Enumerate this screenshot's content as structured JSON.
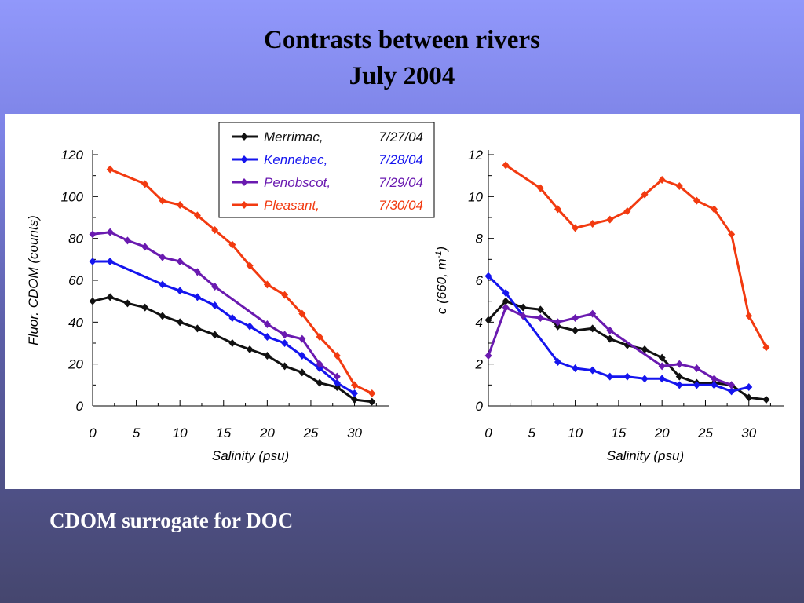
{
  "slide": {
    "title_line1": "Contrasts between rivers",
    "title_line2": "July 2004",
    "caption": "CDOM surrogate for DOC"
  },
  "colors": {
    "Merrimac": "#111111",
    "Kennebec": "#1515ee",
    "Penobscot": "#6a1ab0",
    "Pleasant": "#f23a10"
  },
  "legend": {
    "entries": [
      {
        "name": "Merrimac,",
        "date": "7/27/04",
        "color": "#111111"
      },
      {
        "name": "Kennebec,",
        "date": "7/28/04",
        "color": "#1515ee"
      },
      {
        "name": "Penobscot,",
        "date": "7/29/04",
        "color": "#6a1ab0"
      },
      {
        "name": "Pleasant,",
        "date": "7/30/04",
        "color": "#f23a10"
      }
    ]
  },
  "chart_data": [
    {
      "type": "line",
      "ylabel": "Fluor. CDOM (counts)",
      "xlabel": "Salinity (psu)",
      "xlim": [
        0,
        34
      ],
      "ylim": [
        0,
        120
      ],
      "xticks": [
        0,
        5,
        10,
        15,
        20,
        25,
        30
      ],
      "yticks": [
        0,
        20,
        40,
        60,
        80,
        100,
        120
      ],
      "grid": false,
      "legend_placement": "top-right",
      "series": [
        {
          "name": "Merrimac",
          "color": "#111111",
          "x": [
            0,
            2,
            4,
            6,
            8,
            10,
            12,
            14,
            16,
            18,
            20,
            22,
            24,
            26,
            28,
            30,
            32
          ],
          "y": [
            50,
            52,
            49,
            47,
            43,
            40,
            37,
            34,
            30,
            27,
            24,
            19,
            16,
            11,
            9,
            3,
            2
          ]
        },
        {
          "name": "Kennebec",
          "color": "#1515ee",
          "x": [
            0,
            2,
            8,
            10,
            12,
            14,
            16,
            18,
            20,
            22,
            24,
            26,
            28,
            30
          ],
          "y": [
            69,
            69,
            58,
            55,
            52,
            48,
            42,
            38,
            33,
            30,
            24,
            18,
            11,
            6
          ]
        },
        {
          "name": "Penobscot",
          "color": "#6a1ab0",
          "x": [
            0,
            2,
            4,
            6,
            8,
            10,
            12,
            14,
            20,
            22,
            24,
            26,
            28
          ],
          "y": [
            82,
            83,
            79,
            76,
            71,
            69,
            64,
            57,
            39,
            34,
            32,
            20,
            14
          ]
        },
        {
          "name": "Pleasant",
          "color": "#f23a10",
          "x": [
            2,
            6,
            8,
            10,
            12,
            14,
            16,
            18,
            20,
            22,
            24,
            26,
            28,
            30,
            32
          ],
          "y": [
            113,
            106,
            98,
            96,
            91,
            84,
            77,
            67,
            58,
            53,
            44,
            33,
            24,
            10,
            6
          ]
        }
      ]
    },
    {
      "type": "line",
      "ylabel": "c (660, m",
      "ylabel_sup": "-1",
      "ylabel_close": ")",
      "xlabel": "Salinity (psu)",
      "xlim": [
        0,
        34
      ],
      "ylim": [
        0,
        12
      ],
      "xticks": [
        0,
        5,
        10,
        15,
        20,
        25,
        30
      ],
      "yticks": [
        0,
        2,
        4,
        6,
        8,
        10,
        12
      ],
      "grid": false,
      "series": [
        {
          "name": "Merrimac",
          "color": "#111111",
          "x": [
            0,
            2,
            4,
            6,
            8,
            10,
            12,
            14,
            16,
            18,
            20,
            22,
            24,
            26,
            28,
            30,
            32
          ],
          "y": [
            4.1,
            5.0,
            4.7,
            4.6,
            3.8,
            3.6,
            3.7,
            3.2,
            2.9,
            2.7,
            2.3,
            1.4,
            1.1,
            1.1,
            1.0,
            0.4,
            0.3
          ]
        },
        {
          "name": "Kennebec",
          "color": "#1515ee",
          "x": [
            0,
            2,
            8,
            10,
            12,
            14,
            16,
            18,
            20,
            22,
            24,
            26,
            28,
            30
          ],
          "y": [
            6.2,
            5.4,
            2.1,
            1.8,
            1.7,
            1.4,
            1.4,
            1.3,
            1.3,
            1.0,
            1.0,
            1.0,
            0.7,
            0.9
          ]
        },
        {
          "name": "Penobscot",
          "color": "#6a1ab0",
          "x": [
            0,
            2,
            4,
            6,
            8,
            10,
            12,
            14,
            20,
            22,
            24,
            26,
            28
          ],
          "y": [
            2.4,
            4.7,
            4.3,
            4.2,
            4.0,
            4.2,
            4.4,
            3.6,
            1.9,
            2.0,
            1.8,
            1.3,
            1.0
          ]
        },
        {
          "name": "Pleasant",
          "color": "#f23a10",
          "x": [
            2,
            6,
            8,
            10,
            12,
            14,
            16,
            18,
            20,
            22,
            24,
            26,
            28,
            30,
            32
          ],
          "y": [
            11.5,
            10.4,
            9.4,
            8.5,
            8.7,
            8.9,
            9.3,
            10.1,
            10.8,
            10.5,
            9.8,
            9.4,
            8.2,
            4.3,
            2.8
          ]
        }
      ]
    }
  ]
}
